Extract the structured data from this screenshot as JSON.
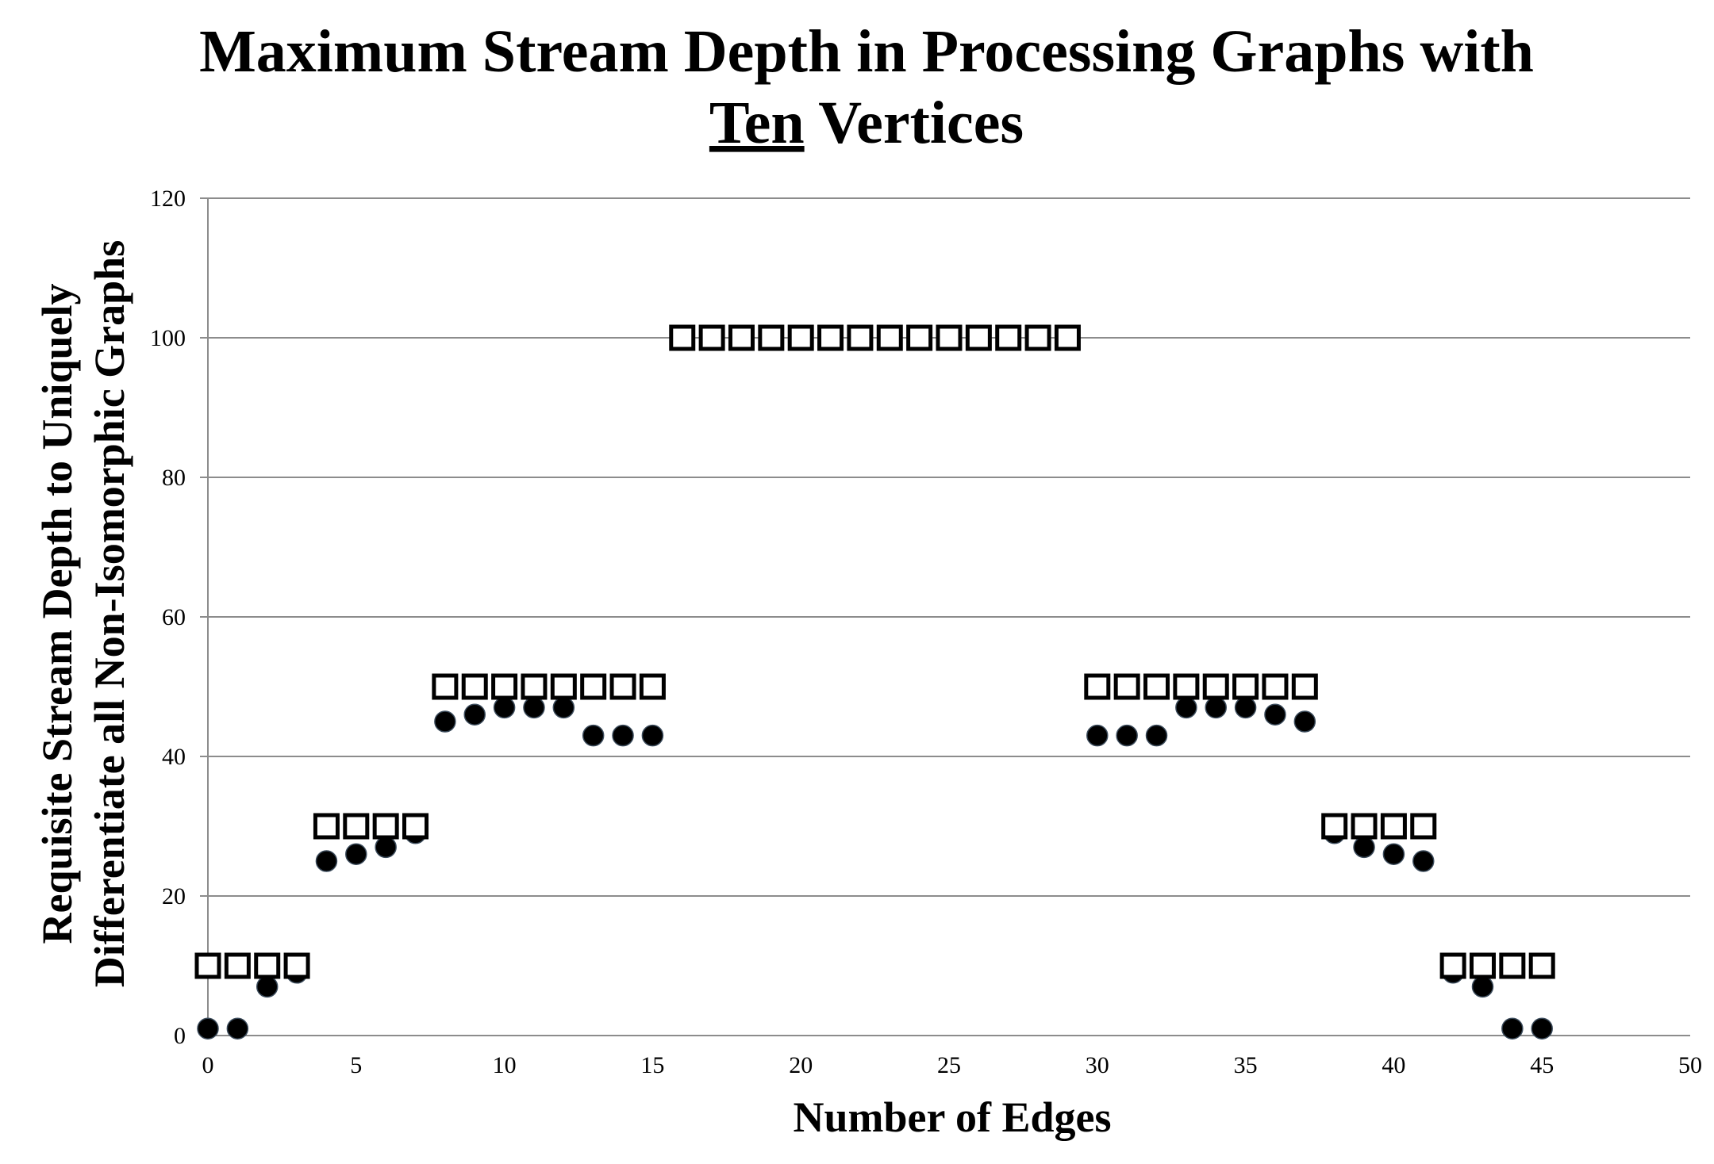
{
  "chart_data": {
    "type": "scatter",
    "title": {
      "line1": "Maximum Stream Depth in Processing Graphs with",
      "line2_underlined": "Ten",
      "line2_rest": " Vertices"
    },
    "xlabel": "Number of Edges",
    "ylabel": {
      "line1": "Requisite Stream Depth to Uniquely",
      "line2": "Differentiate all Non-Isomorphic Graphs"
    },
    "xlim": [
      0,
      50
    ],
    "ylim": [
      0,
      120
    ],
    "x_ticks": [
      "0",
      "5",
      "10",
      "15",
      "20",
      "25",
      "30",
      "35",
      "40",
      "45",
      "50"
    ],
    "y_ticks": [
      "0",
      "20",
      "40",
      "60",
      "80",
      "100",
      "120"
    ],
    "grid": "horizontal",
    "legend": "none",
    "series": [
      {
        "name": "circles",
        "marker": "filled-circle",
        "x": [
          0,
          1,
          2,
          3,
          4,
          5,
          6,
          7,
          8,
          9,
          10,
          11,
          12,
          13,
          14,
          15,
          30,
          31,
          32,
          33,
          34,
          35,
          36,
          37,
          38,
          39,
          40,
          41,
          42,
          43,
          44,
          45
        ],
        "y": [
          1,
          1,
          7,
          9,
          25,
          26,
          27,
          29,
          45,
          46,
          47,
          47,
          47,
          43,
          43,
          43,
          43,
          43,
          43,
          47,
          47,
          47,
          46,
          45,
          29,
          27,
          26,
          25,
          9,
          7,
          1,
          1
        ]
      },
      {
        "name": "squares",
        "marker": "open-square",
        "x": [
          0,
          1,
          2,
          3,
          4,
          5,
          6,
          7,
          8,
          9,
          10,
          11,
          12,
          13,
          14,
          15,
          16,
          17,
          18,
          19,
          20,
          21,
          22,
          23,
          24,
          25,
          26,
          27,
          28,
          29,
          30,
          31,
          32,
          33,
          34,
          35,
          36,
          37,
          38,
          39,
          40,
          41,
          42,
          43,
          44,
          45
        ],
        "y": [
          10,
          10,
          10,
          10,
          30,
          30,
          30,
          30,
          50,
          50,
          50,
          50,
          50,
          50,
          50,
          50,
          100,
          100,
          100,
          100,
          100,
          100,
          100,
          100,
          100,
          100,
          100,
          100,
          100,
          100,
          50,
          50,
          50,
          50,
          50,
          50,
          50,
          50,
          30,
          30,
          30,
          30,
          10,
          10,
          10,
          10
        ]
      }
    ]
  }
}
